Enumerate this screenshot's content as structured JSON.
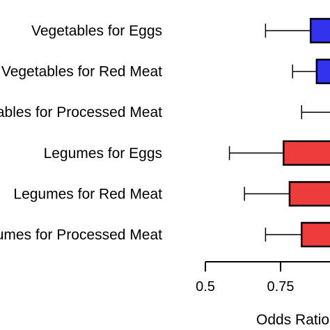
{
  "chart_data": {
    "type": "box",
    "categories": [
      "Vegetables for Eggs",
      "Vegetables for Red Meat",
      "Vegetables for Processed Meat",
      "Legumes for Eggs",
      "Legumes for Red Meat",
      "Legumes for Processed Meat"
    ],
    "rows": [
      {
        "category": "Vegetables for Eggs",
        "whisker_low": 0.7,
        "box_low": 0.85,
        "box_high": 1.0,
        "color": "#3333ee"
      },
      {
        "category": "Vegetables for Red Meat",
        "whisker_low": 0.79,
        "box_low": 0.87,
        "box_high": 1.0,
        "color": "#3333ee"
      },
      {
        "category": "Vegetables for Processed Meat",
        "whisker_low": 0.82,
        "box_low": null,
        "box_high": null,
        "color": "#3333ee"
      },
      {
        "category": "Legumes for Eggs",
        "whisker_low": 0.58,
        "box_low": 0.76,
        "box_high": 1.0,
        "color": "#ee3b3b"
      },
      {
        "category": "Legumes for Red Meat",
        "whisker_low": 0.63,
        "box_low": 0.78,
        "box_high": 1.0,
        "color": "#ee3b3b"
      },
      {
        "category": "Legumes for Processed Meat",
        "whisker_low": 0.7,
        "box_low": 0.82,
        "box_high": 1.0,
        "color": "#ee3b3b"
      }
    ],
    "x_ticks": [
      {
        "value": 0.5,
        "label": "0.5"
      },
      {
        "value": 0.75,
        "label": "0.75"
      }
    ],
    "xlabel": "Odds Ratio",
    "xlim": [
      0.5,
      1.0
    ],
    "grid": false
  }
}
